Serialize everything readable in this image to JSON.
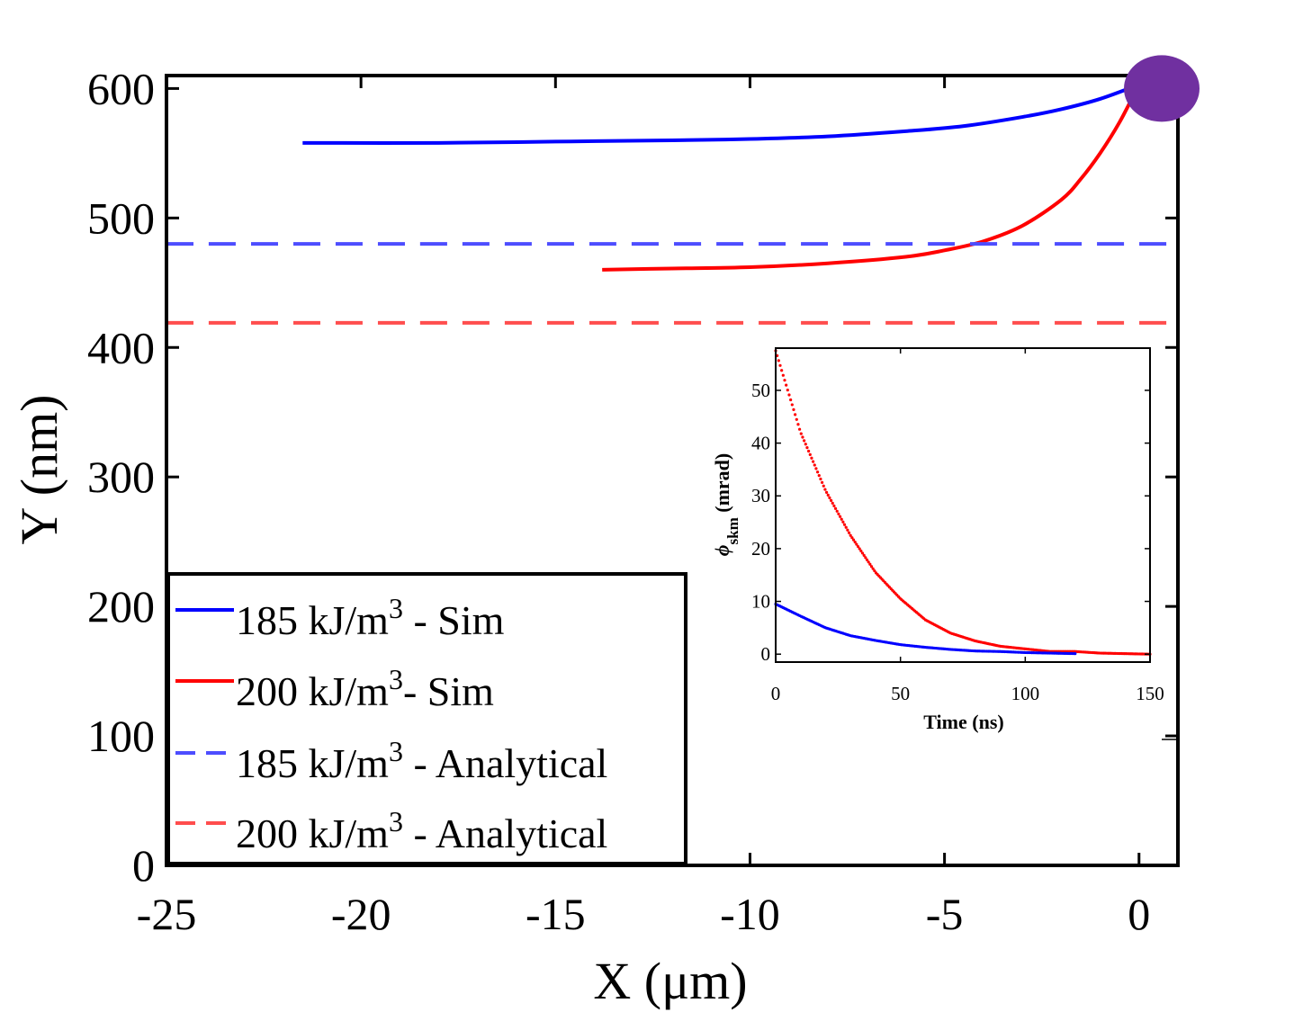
{
  "chart_data": [
    {
      "type": "line",
      "title": "",
      "xlabel": "X (μm)",
      "ylabel": "Y (nm)",
      "xlim": [
        -25,
        1
      ],
      "ylim": [
        0,
        610
      ],
      "x_ticks": [
        -25,
        -20,
        -15,
        -10,
        -5,
        0
      ],
      "y_ticks": [
        0,
        100,
        200,
        300,
        400,
        500,
        600
      ],
      "x_tick_labels": [
        "-25",
        "-20",
        "-15",
        "-10",
        "-5",
        "0"
      ],
      "y_tick_labels": [
        "0",
        "100",
        "200",
        "300",
        "400",
        "500",
        "600"
      ],
      "legend_position": "bottom-left",
      "series": [
        {
          "name": "185 kJ/m³ - Sim",
          "color": "#0000ff",
          "style": "solid",
          "x": [
            -21.5,
            -18,
            -15,
            -12,
            -10,
            -8,
            -6,
            -4.5,
            -3,
            -2,
            -1,
            0
          ],
          "y": [
            558,
            558,
            559,
            560,
            561,
            563,
            567,
            571,
            578,
            584,
            592,
            603
          ]
        },
        {
          "name": "200 kJ/m³- Sim",
          "color": "#ff0000",
          "style": "solid",
          "x": [
            -13.8,
            -12,
            -10,
            -8,
            -6,
            -5,
            -4,
            -3,
            -2,
            -1.5,
            -1,
            -0.5,
            0
          ],
          "y": [
            460,
            461,
            462,
            465,
            470,
            475,
            482,
            494,
            514,
            530,
            550,
            574,
            603
          ]
        },
        {
          "name": "185 kJ/m³ - Analytical",
          "color": "#4d4dff",
          "style": "dashed",
          "x": [
            -25,
            1
          ],
          "y": [
            480,
            480
          ]
        },
        {
          "name": "200 kJ/m³ - Analytical",
          "color": "#ff4d4d",
          "style": "dashed",
          "x": [
            -25,
            1
          ],
          "y": [
            419,
            419
          ]
        }
      ],
      "marker": {
        "x": 0.5,
        "y": 600,
        "color": "#7030a0"
      }
    },
    {
      "type": "scatter",
      "title": "",
      "xlabel": "Time (ns)",
      "ylabel": "ϕskm (mrad)",
      "ylabel_main": "ϕ",
      "ylabel_sub": "skm",
      "ylabel_rest": " (mrad)",
      "xlim": [
        0,
        150
      ],
      "ylim": [
        -1.5,
        58
      ],
      "x_ticks": [
        0,
        50,
        100,
        150
      ],
      "y_ticks": [
        0,
        10,
        20,
        30,
        40,
        50
      ],
      "x_tick_labels": [
        "0",
        "50",
        "100",
        "150"
      ],
      "y_tick_labels": [
        "0",
        "10",
        "20",
        "30",
        "40",
        "50"
      ],
      "series": [
        {
          "color": "#ff0000",
          "x": [
            0,
            10,
            20,
            30,
            40,
            50,
            60,
            70,
            80,
            90,
            100,
            110,
            120,
            130,
            140,
            150
          ],
          "y": [
            57.5,
            42,
            31,
            22.5,
            15.5,
            10.5,
            6.5,
            4,
            2.5,
            1.5,
            1,
            0.5,
            0.5,
            0.2,
            0.1,
            0
          ]
        },
        {
          "color": "#0000ff",
          "x": [
            0,
            10,
            20,
            30,
            40,
            50,
            60,
            70,
            80,
            90,
            100,
            110,
            120
          ],
          "y": [
            9.5,
            7.2,
            5.0,
            3.5,
            2.6,
            1.8,
            1.3,
            0.9,
            0.6,
            0.5,
            0.3,
            0.2,
            0.1
          ]
        }
      ]
    }
  ],
  "legend": {
    "entries": [
      {
        "value": "185 kJ/m",
        "sup": "3",
        "rest": " - Sim"
      },
      {
        "value": "200 kJ/m",
        "sup": "3",
        "rest": "- Sim"
      },
      {
        "value": "185 kJ/m",
        "sup": "3",
        "rest": " - Analytical"
      },
      {
        "value": "200 kJ/m",
        "sup": "3",
        "rest": " - Analytical"
      }
    ]
  }
}
